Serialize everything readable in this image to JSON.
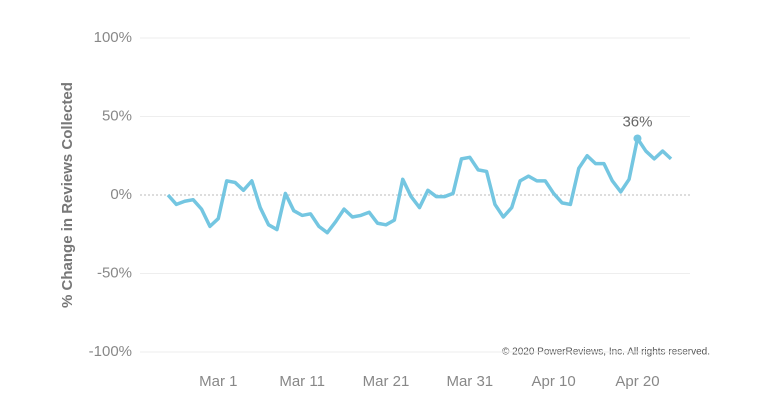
{
  "chart_data": {
    "type": "line",
    "y_label": "% Change in Reviews Collected",
    "annotation": "© 2020 PowerReviews, Inc. All rights reserved.",
    "categories": [
      null,
      null,
      null,
      null,
      null,
      null,
      "Mar 1",
      null,
      null,
      null,
      null,
      null,
      null,
      null,
      null,
      null,
      "Mar 11",
      null,
      null,
      null,
      null,
      null,
      null,
      null,
      null,
      null,
      "Mar 21",
      null,
      null,
      null,
      null,
      null,
      null,
      null,
      null,
      null,
      "Mar 31",
      null,
      null,
      null,
      null,
      null,
      null,
      null,
      null,
      null,
      "Apr 10",
      null,
      null,
      null,
      null,
      null,
      null,
      null,
      null,
      null,
      "Apr 20",
      null,
      null,
      null,
      null
    ],
    "series": [
      {
        "color": "#74c6e1",
        "values": [
          0,
          -6,
          -4,
          -3,
          -9,
          -20,
          -15,
          9,
          8,
          3,
          9,
          -8,
          -19,
          -22,
          1,
          -10,
          -13,
          -12,
          -20,
          -24,
          -17,
          -9,
          -14,
          -13,
          -11,
          -18,
          -19,
          -16,
          10,
          -1,
          -8,
          3,
          -1,
          -1,
          1,
          23,
          24,
          16,
          15,
          -6,
          -14,
          -8,
          9,
          12,
          9,
          9,
          1,
          -5,
          -6,
          17,
          25,
          20,
          20,
          9,
          2,
          10,
          36,
          28,
          23,
          28,
          23
        ],
        "value_labels": [
          null,
          null,
          null,
          null,
          null,
          null,
          null,
          null,
          null,
          null,
          null,
          null,
          null,
          null,
          null,
          null,
          null,
          null,
          null,
          null,
          null,
          null,
          null,
          null,
          null,
          null,
          null,
          null,
          null,
          null,
          null,
          null,
          null,
          null,
          null,
          null,
          null,
          null,
          null,
          null,
          null,
          null,
          null,
          null,
          null,
          null,
          null,
          null,
          null,
          null,
          null,
          null,
          null,
          null,
          null,
          null,
          "36%",
          null,
          null,
          null,
          null
        ]
      }
    ],
    "ylim": [
      -100,
      100
    ],
    "yticks": [
      {
        "value": -100,
        "label": "-100%"
      },
      {
        "value": -50,
        "label": "-50%"
      },
      {
        "value": 0,
        "label": "0%"
      },
      {
        "value": 50,
        "label": "50%"
      },
      {
        "value": 100,
        "label": "100%"
      }
    ],
    "grid": true
  }
}
